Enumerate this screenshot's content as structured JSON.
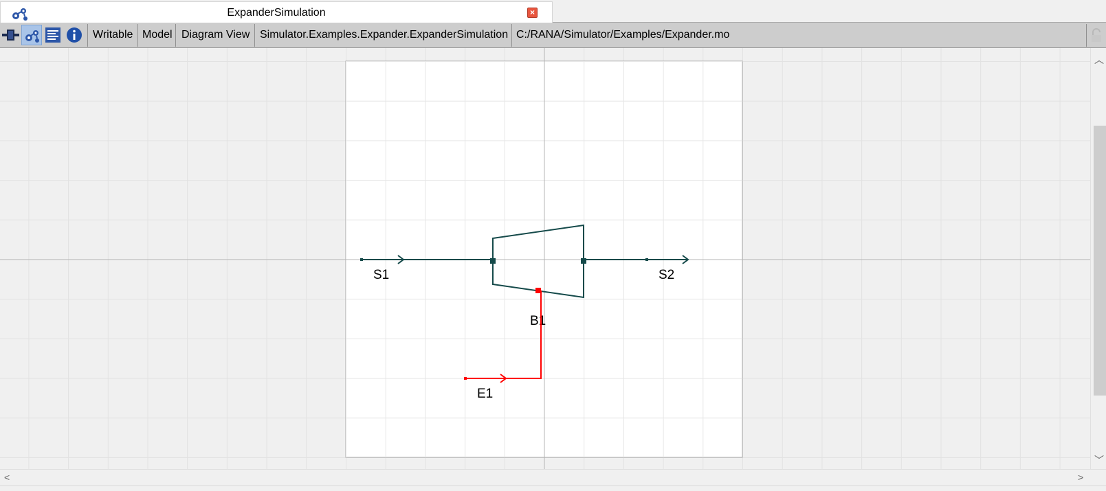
{
  "tab": {
    "title": "ExpanderSimulation",
    "icon": "diagram-icon",
    "close_icon": "close-icon"
  },
  "toolbar": {
    "buttons": [
      {
        "name": "icon-view-button",
        "icon": "connector-icon"
      },
      {
        "name": "diagram-view-button",
        "icon": "diagram-icon",
        "active": true
      },
      {
        "name": "text-view-button",
        "icon": "text-lines-icon"
      },
      {
        "name": "documentation-view-button",
        "icon": "info-icon"
      }
    ],
    "access": "Writable",
    "class_type": "Model",
    "view_mode": "Diagram View",
    "model_path": "Simulator.Examples.Expander.ExpanderSimulation",
    "file_path": "C:/RANA/Simulator/Examples/Expander.mo",
    "lock_icon": "lock-icon"
  },
  "diagram": {
    "components": [
      {
        "id": "S1",
        "label": "S1",
        "kind": "fluid-source"
      },
      {
        "id": "S2",
        "label": "S2",
        "kind": "fluid-sink"
      },
      {
        "id": "B1",
        "label": "B1",
        "kind": "expander"
      },
      {
        "id": "E1",
        "label": "E1",
        "kind": "power-source"
      }
    ],
    "colors": {
      "fluid_connection": "#154a4a",
      "power_connection": "#ff0000",
      "grid_minor": "#e6e6e6",
      "axis": "#b4b4b4",
      "extent_border": "#a8a8a8",
      "extent_fill": "#ffffff",
      "background": "#f0f0f0"
    }
  },
  "scroll": {
    "up_icon": "chevron-up-icon",
    "down_icon": "chevron-down-icon",
    "left_icon": "chevron-left-icon",
    "right_icon": "chevron-right-icon"
  }
}
